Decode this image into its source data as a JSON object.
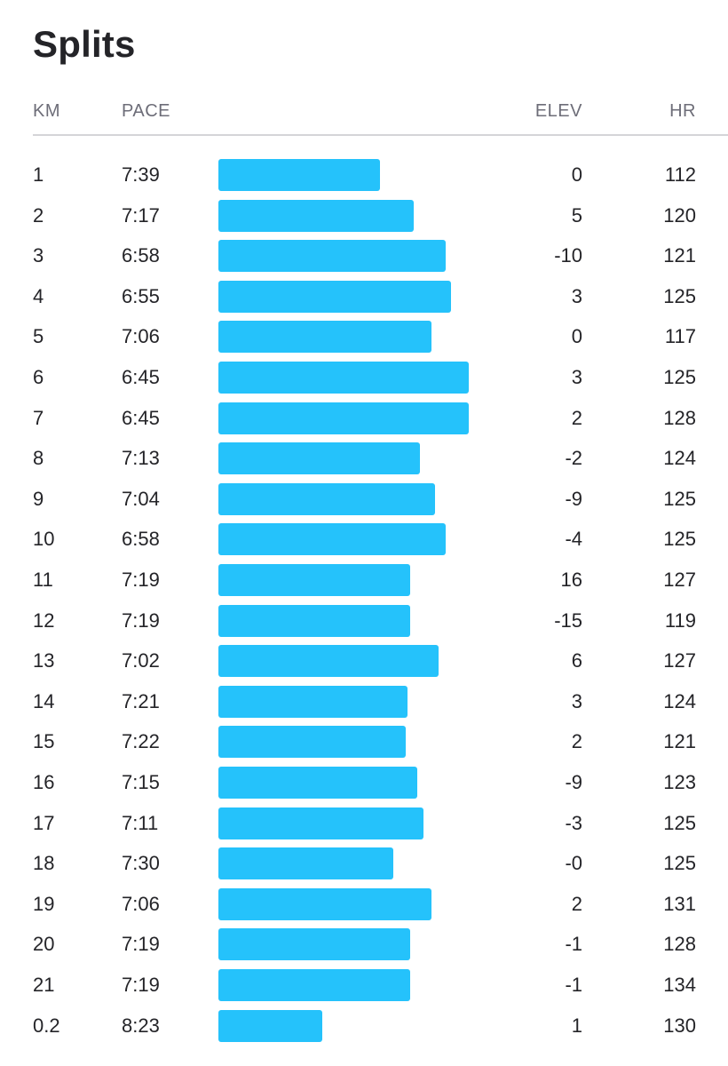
{
  "title": "Splits",
  "headers": {
    "km": "KM",
    "pace": "PACE",
    "elev": "ELEV",
    "hr": "HR"
  },
  "colors": {
    "bar": "#25c2fb",
    "text": "#242428",
    "header_text": "#6d6d78",
    "divider": "#d4d4d8"
  },
  "splits": [
    {
      "km": "1",
      "pace": "7:39",
      "elev": "0",
      "hr": "112"
    },
    {
      "km": "2",
      "pace": "7:17",
      "elev": "5",
      "hr": "120"
    },
    {
      "km": "3",
      "pace": "6:58",
      "elev": "-10",
      "hr": "121"
    },
    {
      "km": "4",
      "pace": "6:55",
      "elev": "3",
      "hr": "125"
    },
    {
      "km": "5",
      "pace": "7:06",
      "elev": "0",
      "hr": "117"
    },
    {
      "km": "6",
      "pace": "6:45",
      "elev": "3",
      "hr": "125"
    },
    {
      "km": "7",
      "pace": "6:45",
      "elev": "2",
      "hr": "128"
    },
    {
      "km": "8",
      "pace": "7:13",
      "elev": "-2",
      "hr": "124"
    },
    {
      "km": "9",
      "pace": "7:04",
      "elev": "-9",
      "hr": "125"
    },
    {
      "km": "10",
      "pace": "6:58",
      "elev": "-4",
      "hr": "125"
    },
    {
      "km": "11",
      "pace": "7:19",
      "elev": "16",
      "hr": "127"
    },
    {
      "km": "12",
      "pace": "7:19",
      "elev": "-15",
      "hr": "119"
    },
    {
      "km": "13",
      "pace": "7:02",
      "elev": "6",
      "hr": "127"
    },
    {
      "km": "14",
      "pace": "7:21",
      "elev": "3",
      "hr": "124"
    },
    {
      "km": "15",
      "pace": "7:22",
      "elev": "2",
      "hr": "121"
    },
    {
      "km": "16",
      "pace": "7:15",
      "elev": "-9",
      "hr": "123"
    },
    {
      "km": "17",
      "pace": "7:11",
      "elev": "-3",
      "hr": "125"
    },
    {
      "km": "18",
      "pace": "7:30",
      "elev": "-0",
      "hr": "125"
    },
    {
      "km": "19",
      "pace": "7:06",
      "elev": "2",
      "hr": "131"
    },
    {
      "km": "20",
      "pace": "7:19",
      "elev": "-1",
      "hr": "128"
    },
    {
      "km": "21",
      "pace": "7:19",
      "elev": "-1",
      "hr": "134"
    },
    {
      "km": "0.2",
      "pace": "8:23",
      "elev": "1",
      "hr": "130"
    }
  ]
}
